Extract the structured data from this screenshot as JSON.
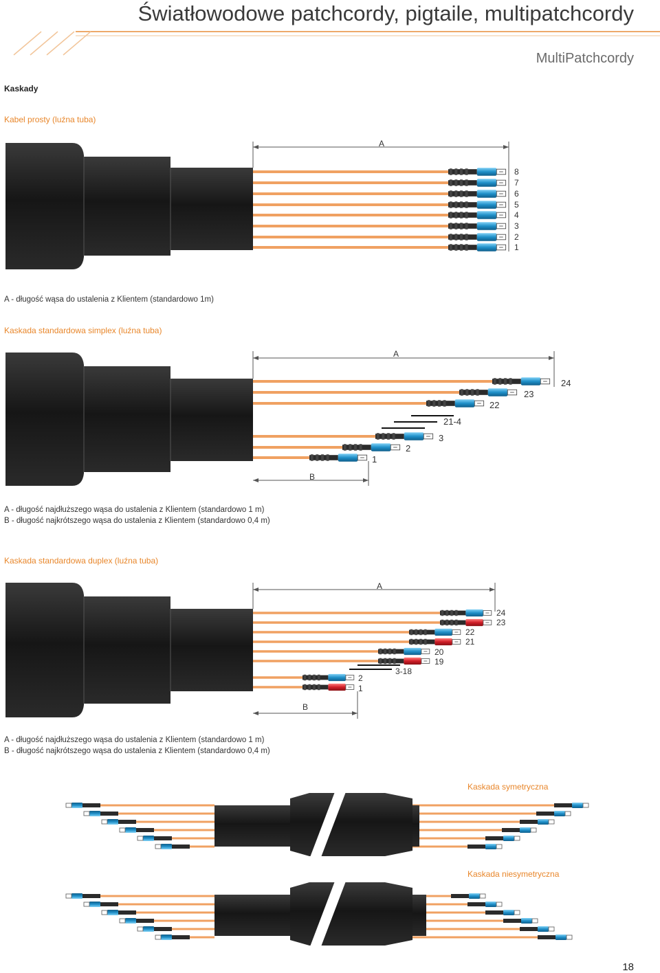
{
  "header": {
    "title": "Światłowodowe patchcordy, pigtaile, multipatchcordy",
    "subtitle": "MultiPatchcordy"
  },
  "colors": {
    "accent": "#e8862a",
    "fiber": "#f0a162",
    "cable": "#1f1f1f",
    "connector_blue": "#2a9fd6",
    "connector_red": "#d0202a"
  },
  "section_title": "Kaskady",
  "fig1": {
    "title": "Kabel prosty (luźna tuba)",
    "dim_a": "A",
    "numbers": [
      "8",
      "7",
      "6",
      "5",
      "4",
      "3",
      "2",
      "1"
    ],
    "note_a": "A - długość wąsa do ustalenia z Klientem (standardowo 1m)"
  },
  "fig2": {
    "title": "Kaskada standardowa simplex (luźna tuba)",
    "dim_a": "A",
    "dim_b": "B",
    "labels": [
      "24",
      "23",
      "22",
      "21-4",
      "3",
      "2",
      "1"
    ],
    "note_a": "A - długość najdłuższego wąsa do ustalenia z Klientem (standardowo 1 m)",
    "note_b": "B - długość najkrótszego wąsa do ustalenia z Klientem (standardowo 0,4 m)"
  },
  "fig3": {
    "title": "Kaskada standardowa duplex (luźna tuba)",
    "dim_a": "A",
    "dim_b": "B",
    "labels": [
      "24",
      "23",
      "22",
      "21",
      "20",
      "19",
      "3-18",
      "2",
      "1"
    ],
    "note_a": "A - długość najdłuższego wąsa do ustalenia z Klientem (standardowo 1 m)",
    "note_b": "B - długość najkrótszego wąsa do ustalenia z Klientem (standardowo 0,4 m)"
  },
  "fig4": {
    "title": "Kaskada symetryczna"
  },
  "fig5": {
    "title": "Kaskada niesymetryczna"
  },
  "page_number": "18"
}
